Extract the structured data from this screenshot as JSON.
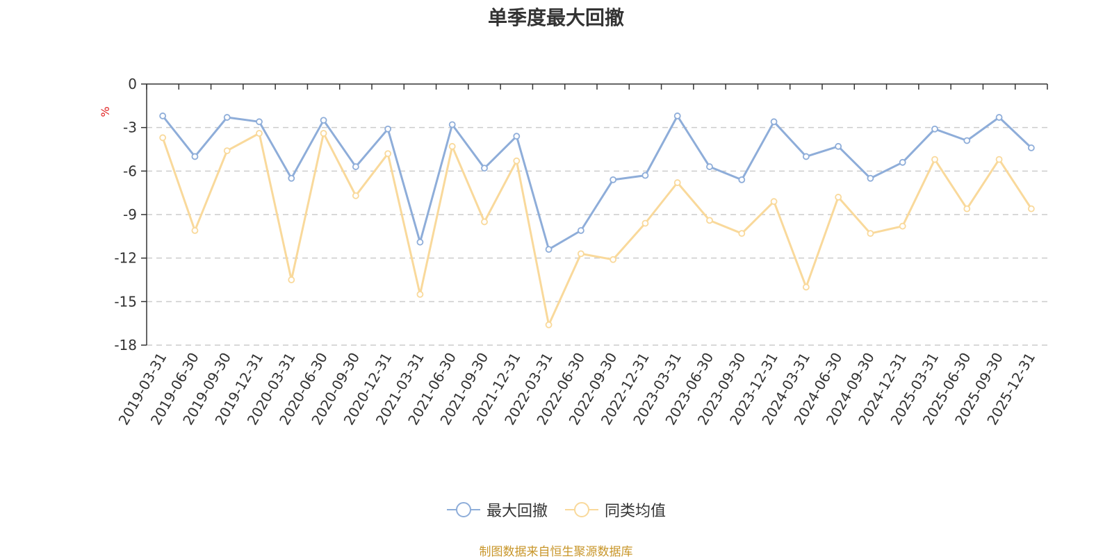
{
  "chart_data": {
    "type": "line",
    "title": "单季度最大回撤",
    "ylabel": "%",
    "ylim": [
      -18,
      0
    ],
    "yticks": [
      0,
      -3,
      -6,
      -9,
      -12,
      -15,
      -18
    ],
    "grid": true,
    "legend_position": "bottom",
    "categories": [
      "2019-03-31",
      "2019-06-30",
      "2019-09-30",
      "2019-12-31",
      "2020-03-31",
      "2020-06-30",
      "2020-09-30",
      "2020-12-31",
      "2021-03-31",
      "2021-06-30",
      "2021-09-30",
      "2021-12-31",
      "2022-03-31",
      "2022-06-30",
      "2022-09-30",
      "2022-12-31",
      "2023-03-31",
      "2023-06-30",
      "2023-09-30",
      "2023-12-31",
      "2024-03-31",
      "2024-06-30",
      "2024-09-30",
      "2024-12-31",
      "2025-03-31",
      "2025-06-30",
      "2025-09-30",
      "2025-12-31"
    ],
    "series": [
      {
        "name": "最大回撤",
        "color": "#8eadd9",
        "values": [
          -2.2,
          -5.0,
          -2.3,
          -2.6,
          -6.5,
          -2.5,
          -5.7,
          -3.1,
          -10.9,
          -2.8,
          -5.8,
          -3.6,
          -11.4,
          -10.1,
          -6.6,
          -6.3,
          -2.2,
          -5.7,
          -6.6,
          -2.6,
          -5.0,
          -4.3,
          -6.5,
          -5.4,
          -3.1,
          -3.9,
          -2.3,
          -4.4
        ]
      },
      {
        "name": "同类均值",
        "color": "#f9d99b",
        "values": [
          -3.7,
          -10.1,
          -4.6,
          -3.4,
          -13.5,
          -3.4,
          -7.7,
          -4.8,
          -14.5,
          -4.3,
          -9.5,
          -5.3,
          -16.6,
          -11.7,
          -12.1,
          -9.6,
          -6.8,
          -9.4,
          -10.3,
          -8.1,
          -14.0,
          -7.8,
          -10.3,
          -9.8,
          -5.2,
          -8.6,
          -5.2,
          -8.6
        ]
      }
    ]
  },
  "source_note": "制图数据来自恒生聚源数据库"
}
